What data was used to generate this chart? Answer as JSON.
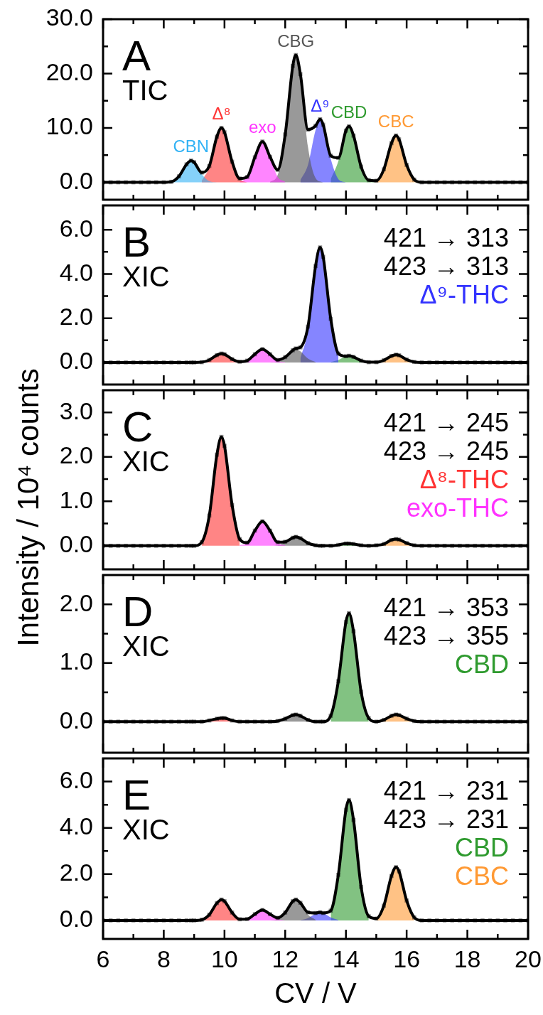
{
  "chart_data": [
    {
      "type": "area",
      "title": "A",
      "subtitle": "TIC",
      "legend": false,
      "tick_labels": "y",
      "xlim": [
        6,
        20
      ],
      "ylim": [
        -3.2,
        30
      ],
      "xticks": [
        6,
        {
          "value": 7,
          "label": null
        },
        8,
        {
          "value": 9,
          "label": null
        },
        10,
        {
          "value": 11,
          "label": null
        },
        12,
        {
          "value": 13,
          "label": null
        },
        14,
        {
          "value": 15,
          "label": null
        },
        16,
        {
          "value": 17,
          "label": null
        },
        18,
        {
          "value": 19,
          "label": null
        },
        20
      ],
      "yticks": [
        {
          "value": 0,
          "label": "0.0"
        },
        {
          "value": 5,
          "label": null
        },
        {
          "value": 10,
          "label": "10.0"
        },
        {
          "value": 15,
          "label": null
        },
        {
          "value": 20,
          "label": "20.0"
        },
        {
          "value": 25,
          "label": null
        },
        {
          "value": 30,
          "label": "30.0"
        }
      ],
      "series": [
        {
          "name": "CBN",
          "type": "area",
          "color": "#33b3f5",
          "x": [
            8.25,
            8.5,
            8.75,
            8.9,
            9,
            9.25,
            9.5,
            9.75
          ],
          "values": [
            0.1,
            1.1,
            3.3,
            4.0,
            3.7,
            1.5,
            0.2,
            0
          ]
        },
        {
          "name": "Δ⁸",
          "type": "area",
          "color": "#ff3333",
          "x": [
            9.25,
            9.5,
            9.75,
            9.9,
            10,
            10.25,
            10.5,
            10.75
          ],
          "values": [
            0.3,
            2.8,
            8.4,
            10.0,
            9.2,
            3.8,
            0.6,
            0
          ]
        },
        {
          "name": "exo",
          "type": "area",
          "color": "#ff33ff",
          "x": [
            10.5,
            10.75,
            11,
            11.25,
            11.5,
            11.75,
            12
          ],
          "values": [
            0.1,
            1.0,
            4.6,
            7.5,
            4.6,
            1.0,
            0.1
          ]
        },
        {
          "name": "CBG",
          "type": "area",
          "color": "#555555",
          "x": [
            11.5,
            11.75,
            12,
            12.25,
            12.35,
            12.5,
            12.75,
            13,
            13.25
          ],
          "values": [
            0.1,
            1.3,
            8.7,
            21.4,
            23.3,
            19.5,
            6.5,
            0.8,
            0
          ]
        },
        {
          "name": "Δ⁹",
          "type": "area",
          "color": "#3333ff",
          "x": [
            12.5,
            12.75,
            13,
            13.15,
            13.25,
            13.5,
            13.75,
            14
          ],
          "values": [
            0.4,
            3.2,
            9.6,
            11.5,
            10.6,
            4.3,
            0.6,
            0
          ]
        },
        {
          "name": "CBD",
          "type": "area",
          "color": "#2e9a2e",
          "x": [
            13.5,
            13.75,
            14,
            14.1,
            14.25,
            14.5,
            14.75,
            15
          ],
          "values": [
            0.6,
            3.9,
            9.5,
            10.3,
            8.6,
            2.9,
            0.4,
            0
          ]
        },
        {
          "name": "CBC",
          "type": "area",
          "color": "#ff9933",
          "x": [
            15,
            15.25,
            15.5,
            15.65,
            15.75,
            16,
            16.25,
            16.5
          ],
          "values": [
            0.3,
            2.4,
            7.2,
            8.6,
            7.9,
            3.2,
            0.5,
            0
          ]
        },
        {
          "type": "line",
          "marker": "square",
          "color": "#000000",
          "x": [
            6,
            6.25,
            6.5,
            6.75,
            7,
            7.25,
            7.5,
            7.75,
            8,
            8.25,
            8.5,
            8.75,
            8.9,
            9,
            9.25,
            9.5,
            9.75,
            9.9,
            10,
            10.25,
            10.5,
            10.75,
            11,
            11.25,
            11.5,
            11.75,
            12,
            12.25,
            12.35,
            12.5,
            12.75,
            13,
            13.15,
            13.25,
            13.5,
            13.75,
            14,
            14.1,
            14.25,
            14.5,
            14.75,
            15,
            15.25,
            15.5,
            15.65,
            15.75,
            16,
            16.25,
            16.5,
            16.75,
            17,
            17.25,
            17.5,
            17.75,
            18,
            18.25,
            18.5,
            18.75,
            19,
            19.25,
            19.5,
            19.75,
            20
          ],
          "values": [
            0,
            0,
            0,
            0,
            0,
            0,
            0,
            0,
            0,
            0.1,
            1.1,
            3.3,
            4.0,
            3.7,
            1.8,
            3.0,
            8.4,
            10.0,
            9.2,
            3.8,
            0.7,
            1.0,
            4.6,
            7.5,
            4.7,
            2.3,
            8.8,
            21.4,
            23.4,
            19.9,
            9.7,
            10.4,
            11.6,
            10.6,
            4.9,
            4.5,
            9.5,
            10.3,
            8.6,
            2.9,
            0.4,
            0.3,
            2.4,
            7.2,
            8.6,
            7.9,
            3.2,
            0.5,
            0,
            0,
            0,
            0,
            0,
            0,
            0,
            0,
            0,
            0,
            0,
            0,
            0,
            0,
            0
          ]
        }
      ]
    },
    {
      "type": "area",
      "title": "B",
      "subtitle": "XIC",
      "annotations": [
        "421 → 313",
        "423 → 313"
      ],
      "legend": "right",
      "tick_labels": "y",
      "xlim": [
        6,
        20
      ],
      "ylim": [
        -1,
        7.1
      ],
      "xticks": [
        6,
        {
          "value": 7,
          "label": null
        },
        8,
        {
          "value": 9,
          "label": null
        },
        10,
        {
          "value": 11,
          "label": null
        },
        12,
        {
          "value": 13,
          "label": null
        },
        14,
        {
          "value": 15,
          "label": null
        },
        16,
        {
          "value": 17,
          "label": null
        },
        18,
        {
          "value": 19,
          "label": null
        },
        20
      ],
      "yticks": [
        {
          "value": 0,
          "label": "0.0"
        },
        {
          "value": 1,
          "label": null
        },
        {
          "value": 2,
          "label": "2.0"
        },
        {
          "value": 3,
          "label": null
        },
        {
          "value": 4,
          "label": "4.0"
        },
        {
          "value": 5,
          "label": null
        },
        {
          "value": 6,
          "label": "6.0"
        }
      ],
      "series": [
        {
          "type": "area",
          "color": "#ff3333",
          "x": [
            9.25,
            9.5,
            9.75,
            9.9,
            10,
            10.25,
            10.5
          ],
          "values": [
            0.01,
            0.11,
            0.33,
            0.4,
            0.37,
            0.15,
            0.02
          ]
        },
        {
          "type": "area",
          "color": "#ff33ff",
          "x": [
            10.5,
            10.75,
            11,
            11.25,
            11.5,
            11.75,
            12
          ],
          "values": [
            0.01,
            0.08,
            0.37,
            0.6,
            0.37,
            0.08,
            0.01
          ]
        },
        {
          "type": "area",
          "color": "#555555",
          "x": [
            11.5,
            11.75,
            12,
            12.25,
            12.35,
            12.5,
            12.75,
            13
          ],
          "values": [
            0,
            0.03,
            0.23,
            0.55,
            0.6,
            0.5,
            0.17,
            0.02
          ]
        },
        {
          "name": "Δ⁹-THC",
          "type": "area",
          "color": "#3333ff",
          "x": [
            12.5,
            12.75,
            13,
            13.15,
            13.25,
            13.5,
            13.75
          ],
          "values": [
            0.18,
            1.45,
            4.34,
            5.2,
            4.78,
            1.95,
            0.29
          ]
        },
        {
          "type": "area",
          "color": "#2e9a2e",
          "x": [
            13.5,
            13.75,
            14,
            14.1,
            14.25,
            14.5,
            14.75
          ],
          "values": [
            0.02,
            0.11,
            0.28,
            0.3,
            0.25,
            0.08,
            0.01
          ]
        },
        {
          "type": "area",
          "color": "#ff9933",
          "x": [
            15,
            15.25,
            15.5,
            15.65,
            15.75,
            16,
            16.25
          ],
          "values": [
            0.01,
            0.1,
            0.29,
            0.35,
            0.32,
            0.13,
            0.02
          ]
        },
        {
          "type": "line",
          "color": "#000000",
          "x": [
            6,
            6.25,
            6.5,
            6.75,
            7,
            7.25,
            7.5,
            7.75,
            8,
            8.25,
            8.5,
            8.75,
            8.9,
            9,
            9.25,
            9.5,
            9.75,
            9.9,
            10,
            10.25,
            10.5,
            10.75,
            11,
            11.25,
            11.5,
            11.75,
            12,
            12.25,
            12.35,
            12.5,
            12.75,
            13,
            13.15,
            13.25,
            13.5,
            13.75,
            14,
            14.1,
            14.25,
            14.5,
            14.75,
            15,
            15.25,
            15.5,
            15.65,
            15.75,
            16,
            16.25,
            16.5,
            16.75,
            17,
            17.25,
            17.5,
            17.75,
            18,
            18.25,
            18.5,
            18.75,
            19,
            19.25,
            19.5,
            19.75,
            20
          ],
          "marker": "square",
          "values": [
            0,
            0,
            0,
            0,
            0,
            0,
            0,
            0,
            0,
            0,
            0,
            0,
            0,
            0,
            0.01,
            0.11,
            0.33,
            0.4,
            0.37,
            0.15,
            0.03,
            0.08,
            0.37,
            0.6,
            0.37,
            0.11,
            0.24,
            0.55,
            0.63,
            0.68,
            1.62,
            4.36,
            5.2,
            4.78,
            1.97,
            0.4,
            0.28,
            0.3,
            0.25,
            0.08,
            0.01,
            0.01,
            0.1,
            0.29,
            0.35,
            0.32,
            0.13,
            0.02,
            0,
            0,
            0,
            0,
            0,
            0,
            0,
            0,
            0,
            0,
            0,
            0,
            0,
            0,
            0
          ]
        }
      ]
    },
    {
      "type": "area",
      "title": "C",
      "subtitle": "XIC",
      "ylabel": "Intensity / 10⁴ counts",
      "annotations": [
        "421 → 245",
        "423 → 245"
      ],
      "legend": "right",
      "tick_labels": "y",
      "xlim": [
        6,
        20
      ],
      "ylim": [
        -0.53,
        3.5
      ],
      "xticks": [
        6,
        {
          "value": 7,
          "label": null
        },
        8,
        {
          "value": 9,
          "label": null
        },
        10,
        {
          "value": 11,
          "label": null
        },
        12,
        {
          "value": 13,
          "label": null
        },
        14,
        {
          "value": 15,
          "label": null
        },
        16,
        {
          "value": 17,
          "label": null
        },
        18,
        {
          "value": 19,
          "label": null
        },
        20
      ],
      "yticks": [
        {
          "value": 0,
          "label": "0.0"
        },
        {
          "value": 0.5,
          "label": null
        },
        {
          "value": 1,
          "label": "1.0"
        },
        {
          "value": 1.5,
          "label": null
        },
        {
          "value": 2,
          "label": "2.0"
        },
        {
          "value": 2.5,
          "label": null
        },
        {
          "value": 3,
          "label": "3.0"
        }
      ],
      "series": [
        {
          "name": "Δ⁸-THC",
          "type": "area",
          "color": "#ff3333",
          "x": [
            9.25,
            9.5,
            9.75,
            9.9,
            10,
            10.25,
            10.5
          ],
          "values": [
            0.08,
            0.68,
            2.05,
            2.45,
            2.25,
            0.92,
            0.14
          ]
        },
        {
          "name": "exo-THC",
          "type": "area",
          "color": "#ff33ff",
          "x": [
            10.5,
            10.75,
            11,
            11.25,
            11.5,
            11.75,
            12
          ],
          "values": [
            0.01,
            0.07,
            0.34,
            0.55,
            0.34,
            0.07,
            0.01
          ]
        },
        {
          "type": "area",
          "color": "#555555",
          "x": [
            11.5,
            11.75,
            12,
            12.25,
            12.35,
            12.5,
            12.75,
            13
          ],
          "values": [
            0,
            0.01,
            0.08,
            0.18,
            0.2,
            0.17,
            0.06,
            0.01
          ]
        },
        {
          "type": "area",
          "color": "#2e9a2e",
          "x": [
            13.5,
            13.75,
            14,
            14.1,
            14.25,
            14.5,
            14.75
          ],
          "values": [
            0,
            0.02,
            0.05,
            0.05,
            0.04,
            0.01,
            0
          ]
        },
        {
          "type": "area",
          "color": "#ff9933",
          "x": [
            15,
            15.25,
            15.5,
            15.65,
            15.75,
            16,
            16.25
          ],
          "values": [
            0.01,
            0.04,
            0.13,
            0.15,
            0.14,
            0.06,
            0.01
          ]
        },
        {
          "type": "line",
          "color": "#000000",
          "x": [
            6,
            6.25,
            6.5,
            6.75,
            7,
            7.25,
            7.5,
            7.75,
            8,
            8.25,
            8.5,
            8.75,
            8.9,
            9,
            9.25,
            9.5,
            9.75,
            9.9,
            10,
            10.25,
            10.5,
            10.75,
            11,
            11.25,
            11.5,
            11.75,
            12,
            12.25,
            12.35,
            12.5,
            12.75,
            13,
            13.15,
            13.25,
            13.5,
            13.75,
            14,
            14.1,
            14.25,
            14.5,
            14.75,
            15,
            15.25,
            15.5,
            15.65,
            15.75,
            16,
            16.25,
            16.5,
            16.75,
            17,
            17.25,
            17.5,
            17.75,
            18,
            18.25,
            18.5,
            18.75,
            19,
            19.25,
            19.5,
            19.75,
            20
          ],
          "marker": "square",
          "values": [
            0,
            0,
            0,
            0,
            0,
            0,
            0,
            0,
            0,
            0,
            0,
            0,
            0,
            0,
            0.08,
            0.68,
            2.05,
            2.45,
            2.25,
            0.92,
            0.15,
            0.07,
            0.34,
            0.55,
            0.34,
            0.08,
            0.09,
            0.18,
            0.2,
            0.17,
            0.06,
            0.01,
            0,
            0,
            0,
            0.02,
            0.05,
            0.05,
            0.04,
            0.01,
            0,
            0.01,
            0.04,
            0.13,
            0.15,
            0.14,
            0.06,
            0.01,
            0,
            0,
            0,
            0,
            0,
            0,
            0,
            0,
            0,
            0,
            0,
            0,
            0,
            0,
            0
          ]
        }
      ]
    },
    {
      "type": "area",
      "title": "D",
      "subtitle": "XIC",
      "annotations": [
        "421 → 353",
        "423 → 355"
      ],
      "legend": "right",
      "tick_labels": "y",
      "xlim": [
        6,
        20
      ],
      "ylim": [
        -0.53,
        2.5
      ],
      "xticks": [
        6,
        {
          "value": 7,
          "label": null
        },
        8,
        {
          "value": 9,
          "label": null
        },
        10,
        {
          "value": 11,
          "label": null
        },
        12,
        {
          "value": 13,
          "label": null
        },
        14,
        {
          "value": 15,
          "label": null
        },
        16,
        {
          "value": 17,
          "label": null
        },
        18,
        {
          "value": 19,
          "label": null
        },
        20
      ],
      "yticks": [
        {
          "value": 0,
          "label": "0.0"
        },
        {
          "value": 0.5,
          "label": null
        },
        {
          "value": 1,
          "label": "1.0"
        },
        {
          "value": 1.5,
          "label": null
        },
        {
          "value": 2,
          "label": "2.0"
        }
      ],
      "series": [
        {
          "type": "area",
          "color": "#ff3333",
          "x": [
            9.25,
            9.5,
            9.75,
            9.9,
            10,
            10.25,
            10.5
          ],
          "values": [
            0,
            0.02,
            0.05,
            0.06,
            0.06,
            0.02,
            0
          ]
        },
        {
          "type": "area",
          "color": "#555555",
          "x": [
            11.5,
            11.75,
            12,
            12.25,
            12.35,
            12.5,
            12.75,
            13
          ],
          "values": [
            0,
            0.01,
            0.05,
            0.11,
            0.12,
            0.1,
            0.03,
            0
          ]
        },
        {
          "name": "CBD",
          "type": "area",
          "color": "#2e9a2e",
          "x": [
            13.5,
            13.75,
            14,
            14.1,
            14.25,
            14.5,
            14.75
          ],
          "values": [
            0.1,
            0.69,
            1.7,
            1.85,
            1.54,
            0.51,
            0.06
          ]
        },
        {
          "type": "area",
          "color": "#ff9933",
          "x": [
            15,
            15.25,
            15.5,
            15.65,
            15.75,
            16,
            16.25
          ],
          "values": [
            0,
            0.03,
            0.1,
            0.12,
            0.11,
            0.05,
            0.01
          ]
        },
        {
          "type": "line",
          "color": "#000000",
          "x": [
            6,
            6.25,
            6.5,
            6.75,
            7,
            7.25,
            7.5,
            7.75,
            8,
            8.25,
            8.5,
            8.75,
            8.9,
            9,
            9.25,
            9.5,
            9.75,
            9.9,
            10,
            10.25,
            10.5,
            10.75,
            11,
            11.25,
            11.5,
            11.75,
            12,
            12.25,
            12.35,
            12.5,
            12.75,
            13,
            13.15,
            13.25,
            13.5,
            13.75,
            14,
            14.1,
            14.25,
            14.5,
            14.75,
            15,
            15.25,
            15.5,
            15.65,
            15.75,
            16,
            16.25,
            16.5,
            16.75,
            17,
            17.25,
            17.5,
            17.75,
            18,
            18.25,
            18.5,
            18.75,
            19,
            19.25,
            19.5,
            19.75,
            20
          ],
          "marker": "square",
          "values": [
            0,
            0,
            0,
            0,
            0,
            0,
            0,
            0,
            0,
            0,
            0,
            0,
            0,
            0,
            0,
            0.02,
            0.05,
            0.06,
            0.06,
            0.02,
            0,
            0,
            0,
            0,
            0,
            0.01,
            0.05,
            0.11,
            0.12,
            0.1,
            0.03,
            0,
            0,
            0,
            0.1,
            0.69,
            1.7,
            1.85,
            1.54,
            0.51,
            0.06,
            0,
            0.03,
            0.1,
            0.12,
            0.11,
            0.05,
            0.01,
            0,
            0,
            0,
            0,
            0,
            0,
            0,
            0,
            0,
            0,
            0,
            0,
            0,
            0,
            0
          ]
        }
      ]
    },
    {
      "type": "area",
      "title": "E",
      "subtitle": "XIC",
      "xlabel": "CV / V",
      "annotations": [
        "421 → 231",
        "423 → 231"
      ],
      "legend": "right",
      "xlim": [
        6,
        20
      ],
      "ylim": [
        -0.8,
        7.0
      ],
      "xticks": [
        6,
        {
          "value": 7,
          "label": null
        },
        8,
        {
          "value": 9,
          "label": null
        },
        10,
        {
          "value": 11,
          "label": null
        },
        12,
        {
          "value": 13,
          "label": null
        },
        14,
        {
          "value": 15,
          "label": null
        },
        16,
        {
          "value": 17,
          "label": null
        },
        18,
        {
          "value": 19,
          "label": null
        },
        20
      ],
      "yticks": [
        {
          "value": 0,
          "label": "0.0"
        },
        {
          "value": 1,
          "label": null
        },
        {
          "value": 2,
          "label": "2.0"
        },
        {
          "value": 3,
          "label": null
        },
        {
          "value": 4,
          "label": "4.0"
        },
        {
          "value": 5,
          "label": null
        },
        {
          "value": 6,
          "label": "6.0"
        }
      ],
      "series": [
        {
          "type": "area",
          "color": "#ff3333",
          "x": [
            9.25,
            9.5,
            9.75,
            9.9,
            10,
            10.25,
            10.5
          ],
          "values": [
            0.03,
            0.25,
            0.75,
            0.9,
            0.83,
            0.34,
            0.05
          ]
        },
        {
          "type": "area",
          "color": "#ff33ff",
          "x": [
            10.5,
            10.75,
            11,
            11.25,
            11.5,
            11.75,
            12
          ],
          "values": [
            0,
            0.06,
            0.27,
            0.45,
            0.27,
            0.06,
            0
          ]
        },
        {
          "type": "area",
          "color": "#555555",
          "x": [
            11.5,
            11.75,
            12,
            12.25,
            12.35,
            12.5,
            12.75,
            13
          ],
          "values": [
            0,
            0.05,
            0.34,
            0.83,
            0.9,
            0.75,
            0.25,
            0.03
          ]
        },
        {
          "type": "area",
          "color": "#3333ff",
          "x": [
            12.5,
            12.75,
            13,
            13.15,
            13.25,
            13.5,
            13.75
          ],
          "values": [
            0.01,
            0.1,
            0.29,
            0.35,
            0.32,
            0.13,
            0.02
          ]
        },
        {
          "name": "CBD",
          "type": "area",
          "color": "#2e9a2e",
          "x": [
            13.5,
            13.75,
            14,
            14.1,
            14.25,
            14.5,
            14.75
          ],
          "values": [
            0.29,
            1.95,
            4.78,
            5.2,
            4.34,
            1.45,
            0.18
          ]
        },
        {
          "name": "CBC",
          "type": "area",
          "color": "#ff9933",
          "x": [
            15,
            15.25,
            15.5,
            15.65,
            15.75,
            16,
            16.25
          ],
          "values": [
            0.08,
            0.64,
            1.92,
            2.3,
            2.12,
            0.86,
            0.13
          ]
        },
        {
          "type": "line",
          "color": "#000000",
          "x": [
            6,
            6.25,
            6.5,
            6.75,
            7,
            7.25,
            7.5,
            7.75,
            8,
            8.25,
            8.5,
            8.75,
            8.9,
            9,
            9.25,
            9.5,
            9.75,
            9.9,
            10,
            10.25,
            10.5,
            10.75,
            11,
            11.25,
            11.5,
            11.75,
            12,
            12.25,
            12.35,
            12.5,
            12.75,
            13,
            13.15,
            13.25,
            13.5,
            13.75,
            14,
            14.1,
            14.25,
            14.5,
            14.75,
            15,
            15.25,
            15.5,
            15.65,
            15.75,
            16,
            16.25,
            16.5,
            16.75,
            17,
            17.25,
            17.5,
            17.75,
            18,
            18.25,
            18.5,
            18.75,
            19,
            19.25,
            19.5,
            19.75,
            20
          ],
          "marker": "square",
          "values": [
            0,
            0,
            0,
            0,
            0,
            0,
            0,
            0,
            0,
            0,
            0,
            0,
            0,
            0,
            0.03,
            0.25,
            0.75,
            0.9,
            0.83,
            0.34,
            0.05,
            0.06,
            0.27,
            0.45,
            0.27,
            0.11,
            0.34,
            0.83,
            0.9,
            0.76,
            0.35,
            0.32,
            0.35,
            0.32,
            0.42,
            1.97,
            4.78,
            5.2,
            4.34,
            1.45,
            0.18,
            0.08,
            0.64,
            1.92,
            2.3,
            2.12,
            0.86,
            0.13,
            0,
            0,
            0,
            0,
            0,
            0,
            0,
            0,
            0,
            0,
            0,
            0,
            0,
            0,
            0
          ]
        }
      ]
    }
  ]
}
